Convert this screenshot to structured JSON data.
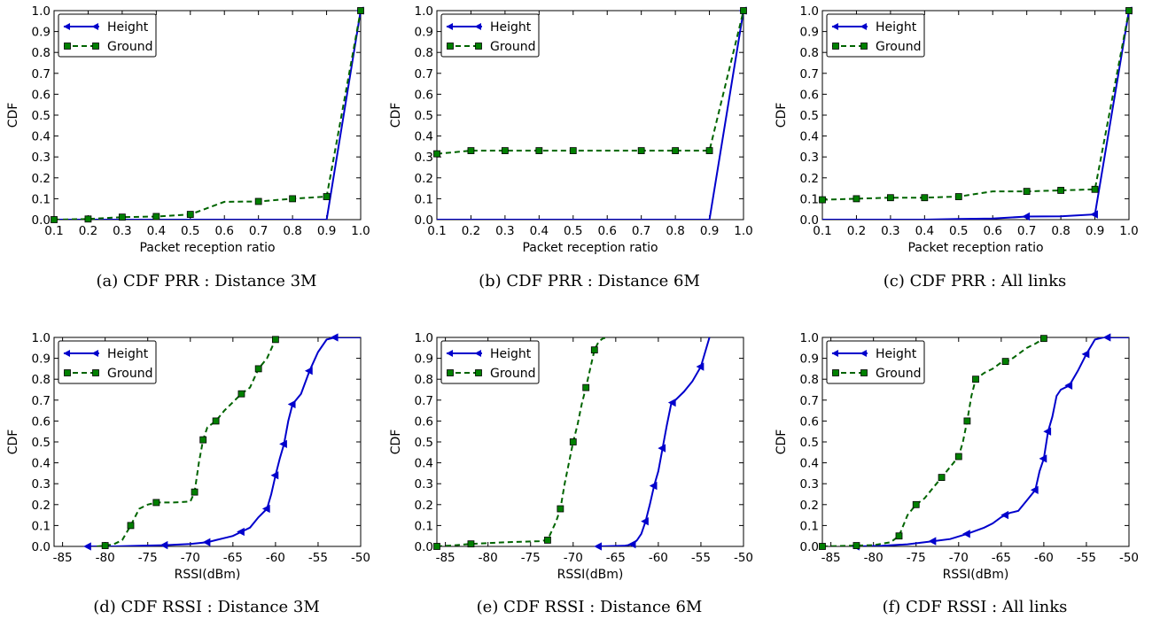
{
  "chart_data": [
    {
      "type": "line",
      "caption": "(a) CDF PRR : Distance 3M",
      "xlabel": "Packet reception ratio",
      "ylabel": "CDF",
      "xlim": [
        0.1,
        1.0
      ],
      "ylim": [
        0.0,
        1.0
      ],
      "xticks": [
        "0.1",
        "0.2",
        "0.3",
        "0.4",
        "0.5",
        "0.6",
        "0.7",
        "0.8",
        "0.9",
        "1.0"
      ],
      "yticks": [
        "0.0",
        "0.1",
        "0.2",
        "0.3",
        "0.4",
        "0.5",
        "0.6",
        "0.7",
        "0.8",
        "0.9",
        "1.0"
      ],
      "legend_position": "top-left",
      "grid": false,
      "series": [
        {
          "name": "Height",
          "color": "#0000cc",
          "style": "solid",
          "marker": "triangle-left",
          "x": [
            0.1,
            0.2,
            0.3,
            0.4,
            0.5,
            0.6,
            0.7,
            0.8,
            0.9,
            1.0
          ],
          "y": [
            0,
            0,
            0,
            0,
            0,
            0,
            0,
            0,
            0,
            1.0
          ],
          "markers_x": [
            1.0
          ]
        },
        {
          "name": "Ground",
          "color": "#006400",
          "style": "dashed",
          "marker": "square",
          "x": [
            0.1,
            0.2,
            0.3,
            0.4,
            0.5,
            0.6,
            0.7,
            0.8,
            0.9,
            1.0
          ],
          "y": [
            0.0,
            0.003,
            0.012,
            0.015,
            0.025,
            0.085,
            0.087,
            0.1,
            0.11,
            1.0
          ],
          "markers_x": [
            0.1,
            0.2,
            0.3,
            0.4,
            0.5,
            0.7,
            0.8,
            0.9,
            1.0
          ]
        }
      ]
    },
    {
      "type": "line",
      "caption": "(b) CDF PRR : Distance 6M",
      "xlabel": "Packet reception ratio",
      "ylabel": "CDF",
      "xlim": [
        0.1,
        1.0
      ],
      "ylim": [
        0.0,
        1.0
      ],
      "xticks": [
        "0.1",
        "0.2",
        "0.3",
        "0.4",
        "0.5",
        "0.6",
        "0.7",
        "0.8",
        "0.9",
        "1.0"
      ],
      "yticks": [
        "0.0",
        "0.1",
        "0.2",
        "0.3",
        "0.4",
        "0.5",
        "0.6",
        "0.7",
        "0.8",
        "0.9",
        "1.0"
      ],
      "legend_position": "top-left",
      "grid": false,
      "series": [
        {
          "name": "Height",
          "color": "#0000cc",
          "style": "solid",
          "marker": "triangle-left",
          "x": [
            0.1,
            0.2,
            0.3,
            0.4,
            0.5,
            0.6,
            0.7,
            0.8,
            0.9,
            1.0
          ],
          "y": [
            0,
            0,
            0,
            0,
            0,
            0,
            0,
            0,
            0,
            1.0
          ],
          "markers_x": [
            1.0
          ]
        },
        {
          "name": "Ground",
          "color": "#006400",
          "style": "dashed",
          "marker": "square",
          "x": [
            0.1,
            0.2,
            0.3,
            0.4,
            0.5,
            0.6,
            0.7,
            0.8,
            0.9,
            1.0
          ],
          "y": [
            0.315,
            0.33,
            0.33,
            0.33,
            0.33,
            0.33,
            0.33,
            0.33,
            0.33,
            1.0
          ],
          "markers_x": [
            0.1,
            0.2,
            0.3,
            0.4,
            0.5,
            0.7,
            0.8,
            0.9,
            1.0
          ]
        }
      ]
    },
    {
      "type": "line",
      "caption": "(c) CDF PRR : All links",
      "xlabel": "Packet reception ratio",
      "ylabel": "CDF",
      "xlim": [
        0.1,
        1.0
      ],
      "ylim": [
        0.0,
        1.0
      ],
      "xticks": [
        "0.1",
        "0.2",
        "0.3",
        "0.4",
        "0.5",
        "0.6",
        "0.7",
        "0.8",
        "0.9",
        "1.0"
      ],
      "yticks": [
        "0.0",
        "0.1",
        "0.2",
        "0.3",
        "0.4",
        "0.5",
        "0.6",
        "0.7",
        "0.8",
        "0.9",
        "1.0"
      ],
      "legend_position": "top-left",
      "grid": false,
      "series": [
        {
          "name": "Height",
          "color": "#0000cc",
          "style": "solid",
          "marker": "triangle-left",
          "x": [
            0.1,
            0.2,
            0.3,
            0.4,
            0.5,
            0.6,
            0.7,
            0.8,
            0.9,
            1.0
          ],
          "y": [
            0,
            0,
            0,
            0,
            0.003,
            0.005,
            0.015,
            0.016,
            0.025,
            1.0
          ],
          "markers_x": [
            0.7,
            0.9,
            1.0
          ]
        },
        {
          "name": "Ground",
          "color": "#006400",
          "style": "dashed",
          "marker": "square",
          "x": [
            0.1,
            0.2,
            0.3,
            0.4,
            0.5,
            0.6,
            0.7,
            0.8,
            0.9,
            1.0
          ],
          "y": [
            0.095,
            0.1,
            0.105,
            0.105,
            0.11,
            0.135,
            0.135,
            0.14,
            0.145,
            1.0
          ],
          "markers_x": [
            0.1,
            0.2,
            0.3,
            0.4,
            0.5,
            0.7,
            0.8,
            0.9,
            1.0
          ]
        }
      ]
    },
    {
      "type": "line",
      "caption": "(d) CDF RSSI : Distance 3M",
      "xlabel": "RSSI(dBm)",
      "ylabel": "CDF",
      "xlim": [
        -86,
        -50
      ],
      "ylim": [
        0.0,
        1.0
      ],
      "xticks": [
        "-85",
        "-80",
        "-75",
        "-70",
        "-65",
        "-60",
        "-55",
        "-50"
      ],
      "yticks": [
        "0.0",
        "0.1",
        "0.2",
        "0.3",
        "0.4",
        "0.5",
        "0.6",
        "0.7",
        "0.8",
        "0.9",
        "1.0"
      ],
      "legend_position": "top-left",
      "grid": false,
      "series": [
        {
          "name": "Height",
          "color": "#0000cc",
          "style": "solid",
          "marker": "triangle-left",
          "x": [
            -82,
            -79,
            -76,
            -73,
            -70,
            -68,
            -67,
            -65,
            -64,
            -63,
            -62,
            -61,
            -60.5,
            -60,
            -59.5,
            -59,
            -58.5,
            -58,
            -57,
            -56,
            -55,
            -54,
            -53,
            -50
          ],
          "y": [
            0,
            0,
            0.003,
            0.006,
            0.012,
            0.02,
            0.03,
            0.05,
            0.07,
            0.09,
            0.14,
            0.18,
            0.25,
            0.34,
            0.42,
            0.49,
            0.6,
            0.68,
            0.73,
            0.84,
            0.93,
            0.99,
            1.0,
            1.0
          ],
          "markers_x": [
            -82,
            -73,
            -68,
            -64,
            -61,
            -60,
            -59,
            -58,
            -56,
            -53
          ]
        },
        {
          "name": "Ground",
          "color": "#006400",
          "style": "dashed",
          "marker": "square",
          "x": [
            -81,
            -80,
            -79,
            -78,
            -77,
            -76,
            -75,
            -74,
            -72,
            -70,
            -69.5,
            -69,
            -68.5,
            -68,
            -67,
            -66,
            -65,
            -64,
            -63,
            -62,
            -61,
            -60,
            -59.5
          ],
          "y": [
            0,
            0.004,
            0.01,
            0.03,
            0.1,
            0.18,
            0.2,
            0.21,
            0.21,
            0.215,
            0.26,
            0.4,
            0.51,
            0.57,
            0.6,
            0.65,
            0.69,
            0.73,
            0.76,
            0.85,
            0.9,
            0.99,
            1.0
          ],
          "markers_x": [
            -80,
            -77,
            -74,
            -69.5,
            -68.5,
            -67,
            -64,
            -62,
            -60
          ]
        }
      ]
    },
    {
      "type": "line",
      "caption": "(e) CDF RSSI : Distance 6M",
      "xlabel": "RSSI(dBm)",
      "ylabel": "CDF",
      "xlim": [
        -86,
        -50
      ],
      "ylim": [
        0.0,
        1.0
      ],
      "xticks": [
        "-85",
        "-80",
        "-75",
        "-70",
        "-65",
        "-60",
        "-55",
        "-50"
      ],
      "yticks": [
        "0.0",
        "0.1",
        "0.2",
        "0.3",
        "0.4",
        "0.5",
        "0.6",
        "0.7",
        "0.8",
        "0.9",
        "1.0"
      ],
      "legend_position": "top-left",
      "grid": false,
      "series": [
        {
          "name": "Height",
          "color": "#0000cc",
          "style": "solid",
          "marker": "triangle-left",
          "x": [
            -67,
            -64,
            -63,
            -62.5,
            -62,
            -61.5,
            -61,
            -60.5,
            -60,
            -59.5,
            -59,
            -58.5,
            -58,
            -57,
            -56,
            -55,
            -54
          ],
          "y": [
            0,
            0.003,
            0.01,
            0.03,
            0.06,
            0.12,
            0.2,
            0.29,
            0.36,
            0.47,
            0.58,
            0.68,
            0.7,
            0.74,
            0.79,
            0.86,
            1.0
          ],
          "markers_x": [
            -67,
            -63,
            -61.5,
            -60.5,
            -59.5,
            -58.3,
            -55
          ]
        },
        {
          "name": "Ground",
          "color": "#006400",
          "style": "dashed",
          "marker": "square",
          "x": [
            -86,
            -84,
            -82,
            -78,
            -74,
            -73,
            -72,
            -71.5,
            -71,
            -70.5,
            -70,
            -69.5,
            -69,
            -68.5,
            -68,
            -67.5,
            -67,
            -66.5,
            -66
          ],
          "y": [
            0,
            0.005,
            0.012,
            0.02,
            0.025,
            0.03,
            0.12,
            0.18,
            0.3,
            0.4,
            0.5,
            0.58,
            0.68,
            0.76,
            0.85,
            0.94,
            0.98,
            0.995,
            1.0
          ],
          "markers_x": [
            -86,
            -82,
            -73,
            -71.5,
            -70,
            -68.5,
            -67.5
          ]
        }
      ]
    },
    {
      "type": "line",
      "caption": "(f) CDF RSSI : All links",
      "xlabel": "RSSI(dBm)",
      "ylabel": "CDF",
      "xlim": [
        -86,
        -50
      ],
      "ylim": [
        0.0,
        1.0
      ],
      "xticks": [
        "-85",
        "-80",
        "-75",
        "-70",
        "-65",
        "-60",
        "-55",
        "-50"
      ],
      "yticks": [
        "0.0",
        "0.1",
        "0.2",
        "0.3",
        "0.4",
        "0.5",
        "0.6",
        "0.7",
        "0.8",
        "0.9",
        "1.0"
      ],
      "legend_position": "top-left",
      "grid": false,
      "series": [
        {
          "name": "Height",
          "color": "#0000cc",
          "style": "solid",
          "marker": "triangle-left",
          "x": [
            -82,
            -79,
            -76,
            -73,
            -71,
            -69,
            -67,
            -66,
            -65,
            -64,
            -63,
            -62,
            -61,
            -60.5,
            -60,
            -59.5,
            -59,
            -58.5,
            -58,
            -57,
            -56,
            -55,
            -54,
            -53,
            -50
          ],
          "y": [
            0,
            0.003,
            0.01,
            0.025,
            0.035,
            0.06,
            0.09,
            0.11,
            0.14,
            0.16,
            0.17,
            0.22,
            0.27,
            0.36,
            0.42,
            0.55,
            0.62,
            0.72,
            0.75,
            0.77,
            0.84,
            0.92,
            0.99,
            1.0,
            1.0
          ],
          "markers_x": [
            -82,
            -73,
            -69,
            -64.5,
            -61,
            -60,
            -59.5,
            -57,
            -55,
            -52.5
          ]
        },
        {
          "name": "Ground",
          "color": "#006400",
          "style": "dashed",
          "marker": "square",
          "x": [
            -86,
            -84,
            -82,
            -80,
            -78,
            -77,
            -76,
            -75,
            -74,
            -73,
            -72,
            -71,
            -70,
            -69.5,
            -69,
            -68.5,
            -68,
            -67,
            -66,
            -65,
            -64,
            -63,
            -62,
            -61,
            -60,
            -59.5
          ],
          "y": [
            0,
            0.002,
            0.004,
            0.006,
            0.02,
            0.05,
            0.15,
            0.2,
            0.23,
            0.28,
            0.33,
            0.38,
            0.43,
            0.5,
            0.6,
            0.72,
            0.8,
            0.83,
            0.85,
            0.88,
            0.89,
            0.92,
            0.95,
            0.97,
            0.995,
            1.0
          ],
          "markers_x": [
            -86,
            -82,
            -77,
            -75,
            -72,
            -70,
            -69,
            -68,
            -64.5,
            -60
          ]
        }
      ]
    }
  ]
}
